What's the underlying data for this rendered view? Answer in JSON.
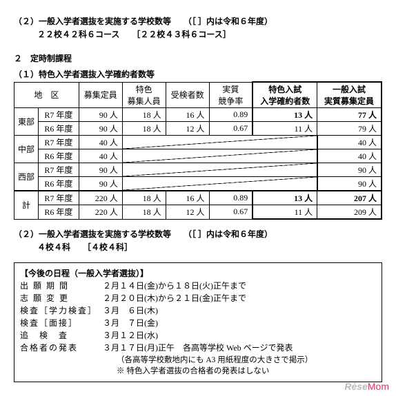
{
  "sec2_header": "（２）一般入学者選抜を実施する学校数等　　（［ ］内は令和６年度）",
  "sec2_sub": "２２校４２科６コース　　［２２校４３科６コース］",
  "sec2_title": "２　定時制課程",
  "table1_title": "（１）特色入学者選抜入学確約者数等",
  "headers": {
    "region": "地　区",
    "capacity": "募集定員",
    "special": "特色\n募集人員",
    "applicants": "受検者数",
    "ratio": "実質\n競争率",
    "confirmed": "特色入試\n入学確約者数",
    "general": "一般入試\n実質募集定員"
  },
  "regions": [
    {
      "name": "東部",
      "years": [
        {
          "y": "R7 年度",
          "cap": "90 人",
          "spc": "18 人",
          "app": "16 人",
          "rat": "0.89",
          "conf": "13 人",
          "gen": "77 人",
          "bold": true
        },
        {
          "y": "R6 年度",
          "cap": "90 人",
          "spc": "18 人",
          "app": "12 人",
          "rat": "0.67",
          "conf": "11 人",
          "gen": "79 人"
        }
      ]
    },
    {
      "name": "中部",
      "years": [
        {
          "y": "R7 年度",
          "cap": "40 人",
          "diag": true,
          "gen": "40 人"
        },
        {
          "y": "R6 年度",
          "cap": "40 人",
          "diag": true,
          "gen": "40 人"
        }
      ]
    },
    {
      "name": "西部",
      "years": [
        {
          "y": "R7 年度",
          "cap": "90 人",
          "diag": true,
          "gen": "90 人"
        },
        {
          "y": "R6 年度",
          "cap": "90 人",
          "diag": true,
          "gen": "90 人"
        }
      ]
    },
    {
      "name": "計",
      "years": [
        {
          "y": "R7 年度",
          "cap": "220 人",
          "spc": "18 人",
          "app": "16 人",
          "rat": "0.89",
          "conf": "13 人",
          "gen": "207 人",
          "bold": true
        },
        {
          "y": "R6 年度",
          "cap": "220 人",
          "spc": "18 人",
          "app": "12 人",
          "rat": "0.67",
          "conf": "11 人",
          "gen": "209 人"
        }
      ]
    }
  ],
  "sec2b_header": "（２）一般入学者選抜を実施する学校数等　　（［ ］内は令和６年度）",
  "sec2b_sub": "４校４科　　［４校４科］",
  "sched_title": "【今後の日程（一般入学者選抜）】",
  "schedule": [
    {
      "label": "出 願 期 間",
      "val": "２月１４日(金)から１８日(火)正午まで"
    },
    {
      "label": "志 願 変 更",
      "val": "２月２０日(木)から２１日(金)正午まで"
    },
    {
      "label": "検査［学力検査］",
      "val": "３月　６日(木)"
    },
    {
      "label": "検査［面接］",
      "val": "３月　７日(金)"
    },
    {
      "label": "追　検　査",
      "val": "３月１２日(水)"
    },
    {
      "label": "合格者の発表",
      "val": "３月１７日(月)正午　各高等学校 Web ページで発表"
    }
  ],
  "notes": [
    "（各高等学校敷地内にも A3 用紙程度の大きさで掲示）",
    "※ 特色入学者選抜の合格者の発表はしない"
  ],
  "watermark_a": "Rėse",
  "watermark_b": "Mom"
}
